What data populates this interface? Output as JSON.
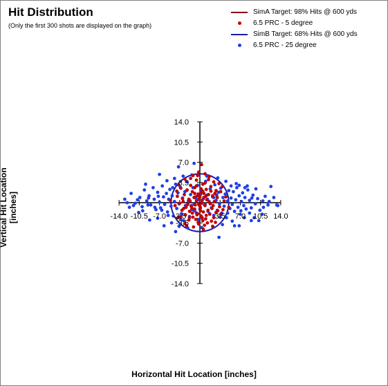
{
  "chart_data": {
    "type": "scatter",
    "title": "Hit Distribution",
    "subtitle": "(Only the first 300 shots are displayed on the graph)",
    "xlabel": "Horizontal Hit Location [inches]",
    "ylabel": "Vertical Hit Location [inches]",
    "xlim": [
      -14.0,
      14.0
    ],
    "ylim": [
      -14.0,
      14.0
    ],
    "grid": false,
    "legend_position": "top-right",
    "x_ticks": [
      "-14.0",
      "-10.5",
      "-7.0",
      "-3.5",
      "3.5",
      "7.0",
      "10.5",
      "14.0"
    ],
    "y_ticks": [
      "14.0",
      "10.5",
      "7.0",
      "3.5",
      "-3.5",
      "-7.0",
      "-10.5",
      "-14.0"
    ],
    "x_tick_values": [
      -14.0,
      -10.5,
      -7.0,
      -3.5,
      3.5,
      7.0,
      10.5,
      14.0
    ],
    "y_tick_values": [
      14.0,
      10.5,
      7.0,
      3.5,
      -3.5,
      -7.0,
      -10.5,
      -14.0
    ],
    "targets": [
      {
        "name": "SimA Target:  98% Hits @ 600 yds",
        "shape": "circle",
        "center": [
          0,
          0
        ],
        "radius": 0,
        "color": "#8b0000"
      },
      {
        "name": "SimB Target:  68% Hits @ 600 yds",
        "shape": "circle",
        "center": [
          0,
          0
        ],
        "radius": 5.0,
        "color": "#1a1aa6"
      }
    ],
    "series": [
      {
        "name": "6.5 PRC - 5 degree",
        "color": "#c00000",
        "points": [
          [
            0.3,
            6.6
          ],
          [
            -0.2,
            5.3
          ],
          [
            0.9,
            5.0
          ],
          [
            -1.2,
            4.7
          ],
          [
            1.6,
            4.5
          ],
          [
            -2.6,
            4.1
          ],
          [
            2.4,
            3.6
          ],
          [
            -0.6,
            3.9
          ],
          [
            0.5,
            3.2
          ],
          [
            -1.6,
            3.0
          ],
          [
            3.3,
            3.3
          ],
          [
            1.9,
            2.8
          ],
          [
            -3.3,
            2.5
          ],
          [
            -0.9,
            2.6
          ],
          [
            0.2,
            2.4
          ],
          [
            1.1,
            2.3
          ],
          [
            2.8,
            2.1
          ],
          [
            -2.2,
            2.2
          ],
          [
            3.6,
            1.9
          ],
          [
            -1.3,
            1.9
          ],
          [
            0.7,
            1.6
          ],
          [
            -0.3,
            1.5
          ],
          [
            1.5,
            1.4
          ],
          [
            -2.7,
            1.4
          ],
          [
            2.2,
            1.2
          ],
          [
            -3.9,
            1.1
          ],
          [
            0.0,
            1.0
          ],
          [
            -1.0,
            0.9
          ],
          [
            3.0,
            0.9
          ],
          [
            -1.9,
            0.6
          ],
          [
            1.2,
            0.5
          ],
          [
            0.4,
            0.4
          ],
          [
            -0.6,
            0.3
          ],
          [
            2.5,
            0.2
          ],
          [
            -2.9,
            0.2
          ],
          [
            4.2,
            0.3
          ],
          [
            -3.5,
            -0.1
          ],
          [
            1.8,
            -0.2
          ],
          [
            -0.2,
            -0.3
          ],
          [
            0.9,
            -0.5
          ],
          [
            -1.5,
            -0.6
          ],
          [
            3.4,
            -0.7
          ],
          [
            -2.4,
            -0.8
          ],
          [
            0.1,
            -0.9
          ],
          [
            2.1,
            -1.0
          ],
          [
            -0.9,
            -1.1
          ],
          [
            1.4,
            -1.3
          ],
          [
            -3.1,
            -1.3
          ],
          [
            -1.8,
            -1.5
          ],
          [
            0.6,
            -1.6
          ],
          [
            2.8,
            -1.7
          ],
          [
            -0.4,
            -1.9
          ],
          [
            1.7,
            -2.0
          ],
          [
            -2.5,
            -2.1
          ],
          [
            3.6,
            -2.0
          ],
          [
            0.2,
            -2.3
          ],
          [
            -1.2,
            -2.5
          ],
          [
            2.4,
            -2.6
          ],
          [
            -3.3,
            -2.4
          ],
          [
            1.0,
            -2.8
          ],
          [
            -0.7,
            -2.9
          ],
          [
            0.5,
            -3.1
          ],
          [
            -1.9,
            -3.0
          ],
          [
            2.0,
            -3.2
          ],
          [
            -0.3,
            -3.4
          ],
          [
            1.3,
            -3.5
          ],
          [
            -2.6,
            -3.6
          ],
          [
            0.8,
            -3.9
          ],
          [
            -1.1,
            -4.2
          ],
          [
            0.1,
            -1.4
          ],
          [
            -0.1,
            0.7
          ],
          [
            0.3,
            -0.1
          ],
          [
            -0.4,
            1.2
          ],
          [
            0.7,
            0.9
          ],
          [
            -0.8,
            -0.4
          ],
          [
            1.0,
            1.1
          ],
          [
            -1.4,
            -0.9
          ],
          [
            0.5,
            2.0
          ],
          [
            -0.5,
            -2.1
          ],
          [
            1.6,
            0.1
          ],
          [
            -1.7,
            0.3
          ],
          [
            2.3,
            -0.5
          ],
          [
            -2.1,
            -0.3
          ],
          [
            0.0,
            -0.6
          ],
          [
            0.2,
            1.7
          ],
          [
            -0.9,
            1.6
          ],
          [
            1.1,
            -2.2
          ],
          [
            -1.3,
            -1.8
          ],
          [
            2.6,
            1.6
          ],
          [
            -2.8,
            -1.0
          ],
          [
            3.1,
            -1.4
          ],
          [
            -3.0,
            0.7
          ],
          [
            0.4,
            -2.6
          ],
          [
            -0.6,
            2.9
          ],
          [
            1.9,
            2.0
          ],
          [
            -1.8,
            -2.6
          ],
          [
            4.0,
            -1.2
          ],
          [
            -4.3,
            -0.5
          ],
          [
            0.9,
            3.4
          ],
          [
            -0.2,
            -3.7
          ],
          [
            4.5,
            1.0
          ],
          [
            -4.0,
            2.0
          ],
          [
            2.7,
            -3.4
          ],
          [
            -3.8,
            -2.6
          ],
          [
            1.5,
            4.0
          ],
          [
            -1.6,
            4.2
          ],
          [
            5.0,
            -0.8
          ],
          [
            -5.1,
            0.4
          ],
          [
            0.6,
            -4.6
          ],
          [
            -0.4,
            4.7
          ],
          [
            3.9,
            2.8
          ],
          [
            -3.7,
            3.1
          ],
          [
            2.2,
            -4.1
          ],
          [
            -2.3,
            -4.0
          ]
        ]
      },
      {
        "name": "6.5 PRC - 25 degree",
        "color": "#1f3fe6",
        "points": [
          [
            -12.6,
            0.0
          ],
          [
            -11.9,
            1.6
          ],
          [
            -11.2,
            -0.1
          ],
          [
            -10.4,
            0.9
          ],
          [
            -10.0,
            -0.7
          ],
          [
            -9.6,
            2.2
          ],
          [
            -9.2,
            0.3
          ],
          [
            -8.8,
            1.2
          ],
          [
            -8.5,
            -0.4
          ],
          [
            -8.1,
            2.6
          ],
          [
            -7.9,
            0.6
          ],
          [
            -7.6,
            -1.2
          ],
          [
            -7.3,
            1.8
          ],
          [
            -7.0,
            0.1
          ],
          [
            -6.8,
            -0.9
          ],
          [
            -6.5,
            2.9
          ],
          [
            -6.3,
            1.0
          ],
          [
            -6.1,
            -0.3
          ],
          [
            -5.8,
            1.6
          ],
          [
            -5.6,
            -1.6
          ],
          [
            -5.4,
            0.6
          ],
          [
            -5.2,
            2.3
          ],
          [
            -5.0,
            -0.6
          ],
          [
            -4.8,
            1.2
          ],
          [
            -4.6,
            -2.3
          ],
          [
            -4.4,
            0.2
          ],
          [
            -4.2,
            3.2
          ],
          [
            -4.0,
            -1.0
          ],
          [
            -3.8,
            1.7
          ],
          [
            -3.6,
            -0.2
          ],
          [
            -3.4,
            2.7
          ],
          [
            -3.2,
            -1.9
          ],
          [
            -3.0,
            0.8
          ],
          [
            -2.8,
            -3.1
          ],
          [
            -2.6,
            1.9
          ],
          [
            -2.4,
            -0.7
          ],
          [
            -2.2,
            3.6
          ],
          [
            -2.0,
            0.3
          ],
          [
            -1.8,
            -2.4
          ],
          [
            -1.6,
            1.4
          ],
          [
            -1.4,
            -1.2
          ],
          [
            -1.2,
            2.6
          ],
          [
            -1.0,
            -0.3
          ],
          [
            -0.8,
            1.0
          ],
          [
            -0.6,
            -1.8
          ],
          [
            -0.4,
            3.0
          ],
          [
            -0.2,
            0.5
          ],
          [
            0.0,
            -1.1
          ],
          [
            0.2,
            2.0
          ],
          [
            0.4,
            -2.7
          ],
          [
            0.6,
            0.7
          ],
          [
            0.8,
            -0.4
          ],
          [
            1.0,
            3.7
          ],
          [
            1.2,
            1.3
          ],
          [
            1.4,
            -1.5
          ],
          [
            1.6,
            0.2
          ],
          [
            1.8,
            2.4
          ],
          [
            2.0,
            -0.9
          ],
          [
            2.2,
            1.0
          ],
          [
            2.4,
            -2.2
          ],
          [
            2.6,
            3.1
          ],
          [
            2.8,
            0.4
          ],
          [
            3.0,
            -1.3
          ],
          [
            3.2,
            1.8
          ],
          [
            3.4,
            -0.2
          ],
          [
            3.6,
            2.5
          ],
          [
            3.8,
            -1.8
          ],
          [
            4.0,
            0.9
          ],
          [
            4.2,
            -0.6
          ],
          [
            4.4,
            1.5
          ],
          [
            4.6,
            -2.6
          ],
          [
            4.8,
            0.3
          ],
          [
            5.0,
            2.1
          ],
          [
            5.2,
            -1.0
          ],
          [
            5.4,
            0.8
          ],
          [
            5.6,
            -0.3
          ],
          [
            5.8,
            1.9
          ],
          [
            6.0,
            -1.5
          ],
          [
            6.2,
            0.5
          ],
          [
            6.4,
            2.6
          ],
          [
            6.6,
            -0.8
          ],
          [
            6.8,
            1.2
          ],
          [
            7.0,
            -2.0
          ],
          [
            7.2,
            0.2
          ],
          [
            7.4,
            1.7
          ],
          [
            7.6,
            -0.5
          ],
          [
            7.8,
            0.9
          ],
          [
            8.0,
            -1.1
          ],
          [
            8.3,
            2.2
          ],
          [
            8.6,
            0.4
          ],
          [
            8.9,
            -0.9
          ],
          [
            9.2,
            1.3
          ],
          [
            9.6,
            -0.2
          ],
          [
            10.0,
            0.7
          ],
          [
            10.4,
            -1.3
          ],
          [
            10.9,
            0.3
          ],
          [
            11.3,
            1.1
          ],
          [
            11.8,
            -0.4
          ],
          [
            12.3,
            2.8
          ],
          [
            12.8,
            0.9
          ],
          [
            13.3,
            -0.4
          ],
          [
            -6.2,
            -4.0
          ],
          [
            -5.7,
            3.8
          ],
          [
            -7.3,
            -2.7
          ],
          [
            -4.9,
            -3.5
          ],
          [
            -4.4,
            4.2
          ],
          [
            -3.6,
            -4.1
          ],
          [
            -2.9,
            4.6
          ],
          [
            -2.1,
            -4.4
          ],
          [
            -1.4,
            4.8
          ],
          [
            0.3,
            -4.3
          ],
          [
            1.2,
            4.6
          ],
          [
            2.3,
            -4.2
          ],
          [
            3.1,
            4.3
          ],
          [
            3.9,
            -3.8
          ],
          [
            4.5,
            3.7
          ],
          [
            5.6,
            -3.2
          ],
          [
            6.3,
            3.3
          ],
          [
            6.8,
            -4.0
          ],
          [
            7.7,
            -2.6
          ],
          [
            8.2,
            2.9
          ],
          [
            8.9,
            -3.1
          ],
          [
            9.7,
            2.4
          ],
          [
            10.2,
            -3.1
          ],
          [
            -8.7,
            -3.0
          ],
          [
            -9.4,
            3.2
          ],
          [
            -10.6,
            -1.7
          ],
          [
            -3.7,
            6.2
          ],
          [
            -7.0,
            4.9
          ],
          [
            -4.2,
            -5.0
          ],
          [
            6.0,
            -4.0
          ],
          [
            -1.0,
            6.8
          ],
          [
            3.3,
            -6.0
          ],
          [
            2.4,
            0.9
          ],
          [
            -2.5,
            -0.5
          ],
          [
            -0.7,
            0.8
          ],
          [
            0.9,
            -0.3
          ],
          [
            1.7,
            -1.9
          ],
          [
            -1.5,
            -0.5
          ],
          [
            0.1,
            1.4
          ],
          [
            -0.3,
            -2.9
          ],
          [
            2.9,
            1.3
          ],
          [
            -2.3,
            2.1
          ],
          [
            1.3,
            0.6
          ],
          [
            -0.9,
            -1.4
          ],
          [
            3.5,
            -2.5
          ],
          [
            -3.3,
            -2.9
          ],
          [
            4.8,
            -1.8
          ],
          [
            -4.7,
            2.6
          ],
          [
            5.4,
            2.9
          ],
          [
            -5.5,
            -2.2
          ],
          [
            6.8,
            3.0
          ],
          [
            -6.6,
            -1.3
          ],
          [
            7.8,
            2.6
          ],
          [
            -7.8,
            -0.8
          ],
          [
            8.6,
            -1.8
          ],
          [
            -8.9,
            0.8
          ],
          [
            9.4,
            -2.6
          ],
          [
            -9.9,
            -1.4
          ],
          [
            10.8,
            -2.0
          ],
          [
            -11.5,
            -0.5
          ],
          [
            12.0,
            0.2
          ],
          [
            -12.2,
            -0.8
          ],
          [
            13.5,
            -0.5
          ],
          [
            -13.0,
            0.6
          ],
          [
            11.0,
            -0.8
          ],
          [
            -10.8,
            0.5
          ],
          [
            9.0,
            0.8
          ],
          [
            -9.0,
            -0.4
          ],
          [
            7.1,
            -1.4
          ],
          [
            -7.2,
            1.1
          ]
        ]
      }
    ]
  },
  "legend": {
    "items": [
      {
        "label": "SimA Target:  98% Hits @ 600 yds",
        "kind": "line",
        "color": "#8b0000"
      },
      {
        "label": "6.5 PRC - 5 degree",
        "kind": "dot",
        "color": "#c00000"
      },
      {
        "label": "SimB Target:  68% Hits @ 600 yds",
        "kind": "line",
        "color": "#1a1aa6"
      },
      {
        "label": "6.5 PRC - 25 degree",
        "kind": "dot",
        "color": "#1f3fe6"
      }
    ]
  }
}
